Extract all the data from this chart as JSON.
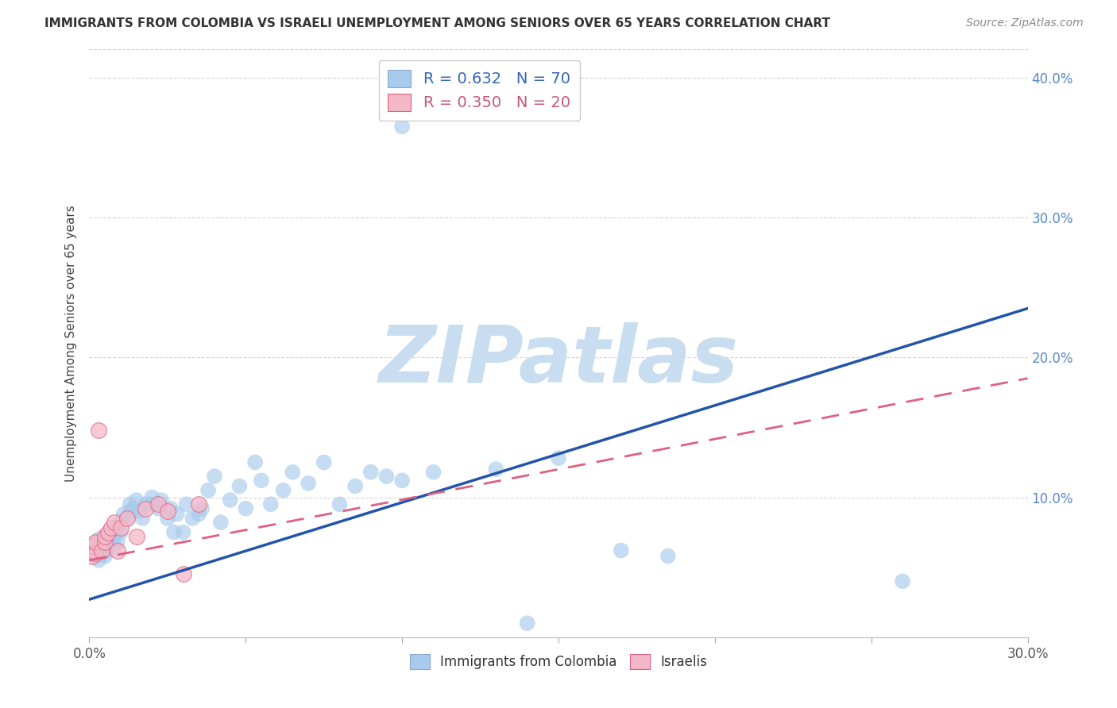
{
  "title": "IMMIGRANTS FROM COLOMBIA VS ISRAELI UNEMPLOYMENT AMONG SENIORS OVER 65 YEARS CORRELATION CHART",
  "source": "Source: ZipAtlas.com",
  "ylabel": "Unemployment Among Seniors over 65 years",
  "xlim": [
    0.0,
    0.3
  ],
  "ylim": [
    0.0,
    0.42
  ],
  "xtick_positions": [
    0.0,
    0.05,
    0.1,
    0.15,
    0.2,
    0.25,
    0.3
  ],
  "xtick_labels": [
    "0.0%",
    "",
    "",
    "",
    "",
    "",
    "30.0%"
  ],
  "yticks_right": [
    0.1,
    0.2,
    0.3,
    0.4
  ],
  "ytick_labels_right": [
    "10.0%",
    "20.0%",
    "30.0%",
    "40.0%"
  ],
  "r_colombia": 0.632,
  "n_colombia": 70,
  "r_israel": 0.35,
  "n_israel": 20,
  "blue_color": "#A8CAEC",
  "blue_line_color": "#2255AA",
  "pink_color": "#F5B8C8",
  "pink_line_color": "#E06080",
  "watermark_text": "ZIPatlas",
  "watermark_color": "#C8DDEF",
  "blue_line_start_y": 0.027,
  "blue_line_end_y": 0.235,
  "pink_line_start_y": 0.055,
  "pink_line_end_y": 0.185,
  "colombia_scatter_x": [
    0.001,
    0.001,
    0.002,
    0.002,
    0.003,
    0.003,
    0.003,
    0.004,
    0.004,
    0.005,
    0.005,
    0.005,
    0.006,
    0.006,
    0.007,
    0.007,
    0.008,
    0.008,
    0.009,
    0.009,
    0.01,
    0.01,
    0.011,
    0.012,
    0.013,
    0.013,
    0.014,
    0.015,
    0.016,
    0.017,
    0.018,
    0.02,
    0.02,
    0.022,
    0.023,
    0.025,
    0.026,
    0.027,
    0.028,
    0.03,
    0.031,
    0.033,
    0.035,
    0.036,
    0.038,
    0.04,
    0.042,
    0.045,
    0.048,
    0.05,
    0.053,
    0.055,
    0.058,
    0.062,
    0.065,
    0.07,
    0.075,
    0.08,
    0.085,
    0.09,
    0.095,
    0.1,
    0.11,
    0.13,
    0.15,
    0.17,
    0.185,
    0.1,
    0.14,
    0.26
  ],
  "colombia_scatter_y": [
    0.06,
    0.065,
    0.058,
    0.068,
    0.055,
    0.062,
    0.07,
    0.06,
    0.068,
    0.058,
    0.065,
    0.072,
    0.062,
    0.07,
    0.068,
    0.075,
    0.065,
    0.072,
    0.068,
    0.078,
    0.075,
    0.082,
    0.088,
    0.085,
    0.09,
    0.095,
    0.092,
    0.098,
    0.09,
    0.085,
    0.095,
    0.095,
    0.1,
    0.092,
    0.098,
    0.085,
    0.092,
    0.075,
    0.088,
    0.075,
    0.095,
    0.085,
    0.088,
    0.092,
    0.105,
    0.115,
    0.082,
    0.098,
    0.108,
    0.092,
    0.125,
    0.112,
    0.095,
    0.105,
    0.118,
    0.11,
    0.125,
    0.095,
    0.108,
    0.118,
    0.115,
    0.112,
    0.118,
    0.12,
    0.128,
    0.062,
    0.058,
    0.365,
    0.01,
    0.04
  ],
  "israel_scatter_x": [
    0.001,
    0.001,
    0.002,
    0.002,
    0.003,
    0.004,
    0.005,
    0.005,
    0.006,
    0.007,
    0.008,
    0.009,
    0.01,
    0.012,
    0.015,
    0.018,
    0.022,
    0.025,
    0.03,
    0.035
  ],
  "israel_scatter_y": [
    0.058,
    0.065,
    0.06,
    0.068,
    0.148,
    0.062,
    0.068,
    0.072,
    0.075,
    0.078,
    0.082,
    0.062,
    0.078,
    0.085,
    0.072,
    0.092,
    0.095,
    0.09,
    0.045,
    0.095
  ]
}
